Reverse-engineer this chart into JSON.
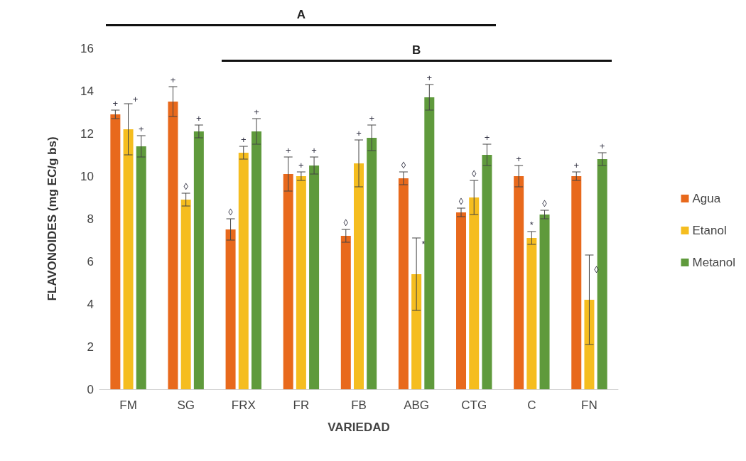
{
  "chart_data": {
    "type": "bar",
    "xlabel": "VARIEDAD",
    "ylabel": "FLAVONOIDES (mg EC/g bs)",
    "categories": [
      "FM",
      "SG",
      "FRX",
      "FR",
      "FB",
      "ABG",
      "CTG",
      "C",
      "FN"
    ],
    "series": [
      {
        "name": "Agua",
        "color": "#e8691c",
        "values": [
          12.9,
          13.5,
          7.5,
          10.1,
          7.2,
          9.9,
          8.3,
          10.0,
          10.0
        ],
        "errors": [
          0.2,
          0.7,
          0.5,
          0.8,
          0.3,
          0.3,
          0.2,
          0.5,
          0.2
        ],
        "value_labels": [
          "+",
          "+",
          "◊",
          "+",
          "◊",
          "◊",
          "◊",
          "+",
          "+"
        ]
      },
      {
        "name": "Etanol",
        "color": "#f5bd1f",
        "values": [
          12.2,
          8.9,
          11.1,
          10.0,
          10.6,
          5.4,
          9.0,
          7.1,
          4.2
        ],
        "errors": [
          1.2,
          0.3,
          0.3,
          0.2,
          1.1,
          1.7,
          0.8,
          0.3,
          2.1
        ],
        "value_labels": [
          "+",
          "◊",
          "+",
          "+",
          "+",
          "*",
          "◊",
          "*",
          "◊"
        ]
      },
      {
        "name": "Metanol",
        "color": "#5f9a3c",
        "values": [
          11.4,
          12.1,
          12.1,
          10.5,
          11.8,
          13.7,
          11.0,
          8.2,
          10.8
        ],
        "errors": [
          0.5,
          0.3,
          0.6,
          0.4,
          0.6,
          0.6,
          0.5,
          0.2,
          0.3
        ],
        "value_labels": [
          "+",
          "+",
          "+",
          "+",
          "+",
          "+",
          "+",
          "◊",
          "+"
        ]
      }
    ],
    "ylim": [
      0,
      16
    ],
    "yticks": [
      0,
      2,
      4,
      6,
      8,
      10,
      12,
      14,
      16
    ],
    "grid": false,
    "legend": "right",
    "annotations": [
      "A",
      "B"
    ]
  }
}
